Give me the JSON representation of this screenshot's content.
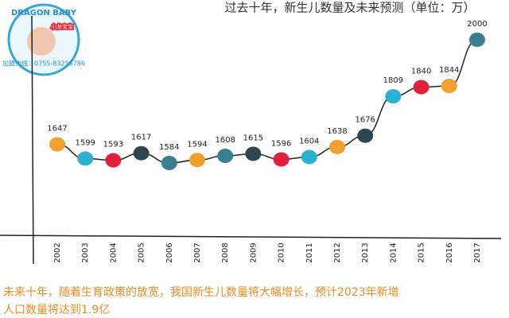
{
  "logo": {
    "brand": "DRAGON BABY",
    "brand_cn": "小龙宝宝",
    "hotline": "加盟热线：0755-83216786"
  },
  "chart_data": {
    "type": "line",
    "title": "过去十年，新生儿数量及未来预测（单位：万）",
    "categories": [
      "2002",
      "2003",
      "2004",
      "2005",
      "2006",
      "2007",
      "2008",
      "2009",
      "2010",
      "2011",
      "2012",
      "2013",
      "2014",
      "2015",
      "2016",
      "2017"
    ],
    "values": [
      1647,
      1599,
      1593,
      1617,
      1584,
      1594,
      1608,
      1615,
      1596,
      1604,
      1638,
      1676,
      1809,
      1840,
      1844,
      2000
    ],
    "line_color": "#222222",
    "point_colors": [
      "#f0a030",
      "#2ab0d0",
      "#e0203a",
      "#2e4650",
      "#3a7f8f",
      "#f0a030",
      "#3a7f8f",
      "#2e4650",
      "#e0203a",
      "#2ab0d0",
      "#f0a030",
      "#2e4650",
      "#2ab0d0",
      "#e0203a",
      "#f0a030",
      "#3a7f8f"
    ]
  },
  "caption": [
    "未来十年，随着生育政策的放宽，我国新生儿数量将大幅增长，预计2023年新增",
    "人口数量将达到1.9亿"
  ]
}
